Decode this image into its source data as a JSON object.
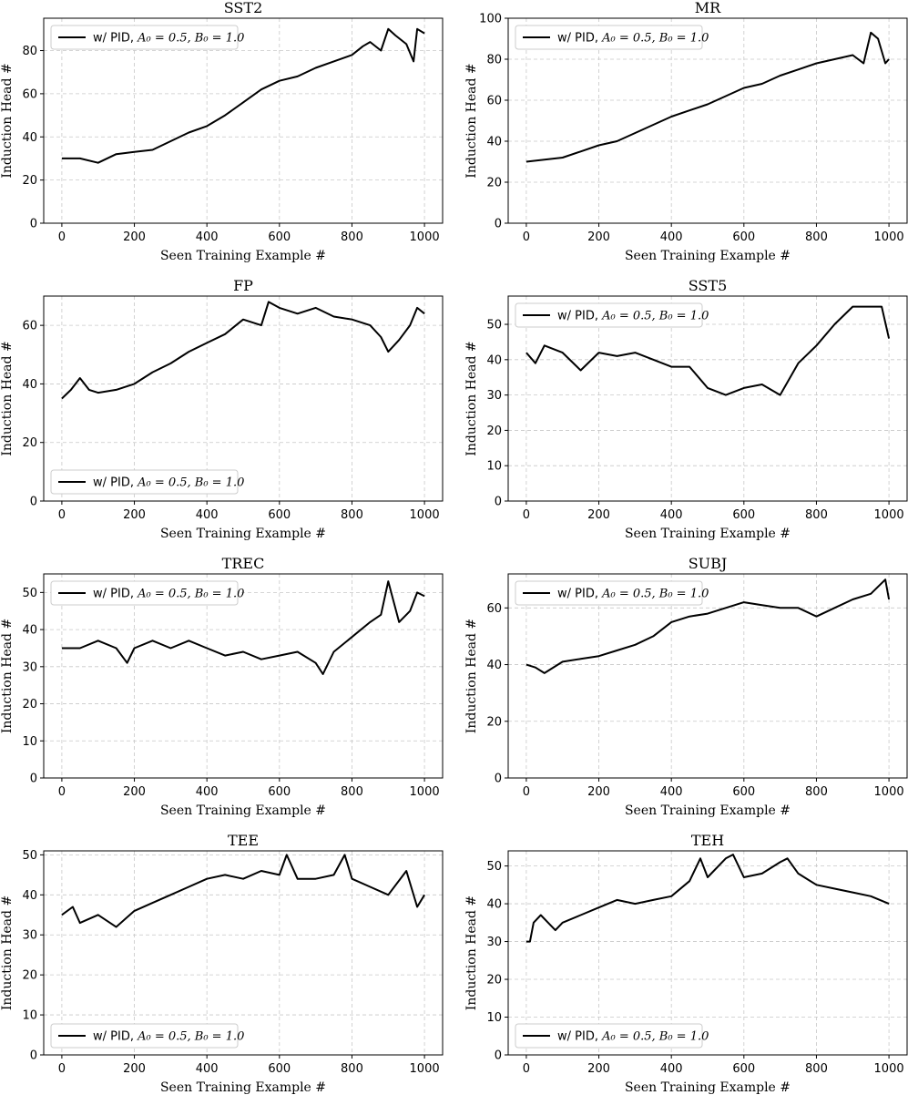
{
  "figure": {
    "xlabel": "Seen Training Example #",
    "ylabel": "Induction Head #",
    "legend_label": "w/ PID, A₀ = 0.5, B₀ = 1.0",
    "legend_prefix": "w/ PID,",
    "legend_math": "A₀ = 0.5, B₀ = 1.0",
    "line_color": "#000000",
    "grid_color": "#c8c8c8"
  },
  "chart_data": [
    {
      "type": "line",
      "title": "SST2",
      "legend_loc": "upper-left",
      "xlim": [
        -50,
        1050
      ],
      "ylim": [
        0,
        95
      ],
      "xticks": [
        0,
        200,
        400,
        600,
        800,
        1000
      ],
      "yticks": [
        0,
        20,
        40,
        60,
        80
      ],
      "series": [
        {
          "name": "w/ PID, A0=0.5, B0=1.0",
          "x": [
            0,
            50,
            100,
            150,
            200,
            250,
            300,
            350,
            400,
            450,
            500,
            550,
            600,
            650,
            700,
            750,
            800,
            830,
            850,
            880,
            900,
            920,
            950,
            970,
            980,
            1000
          ],
          "y": [
            30,
            30,
            28,
            32,
            33,
            34,
            38,
            42,
            45,
            50,
            56,
            62,
            66,
            68,
            72,
            75,
            78,
            82,
            84,
            80,
            90,
            87,
            83,
            75,
            90,
            88
          ]
        }
      ]
    },
    {
      "type": "line",
      "title": "MR",
      "legend_loc": "upper-left",
      "xlim": [
        -50,
        1050
      ],
      "ylim": [
        0,
        100
      ],
      "xticks": [
        0,
        200,
        400,
        600,
        800,
        1000
      ],
      "yticks": [
        0,
        20,
        40,
        60,
        80,
        100
      ],
      "series": [
        {
          "name": "w/ PID, A0=0.5, B0=1.0",
          "x": [
            0,
            50,
            100,
            150,
            200,
            250,
            300,
            350,
            400,
            450,
            500,
            550,
            600,
            650,
            700,
            750,
            800,
            850,
            900,
            930,
            950,
            970,
            990,
            1000
          ],
          "y": [
            30,
            31,
            32,
            35,
            38,
            40,
            44,
            48,
            52,
            55,
            58,
            62,
            66,
            68,
            72,
            75,
            78,
            80,
            82,
            78,
            93,
            90,
            78,
            80
          ]
        }
      ]
    },
    {
      "type": "line",
      "title": "FP",
      "legend_loc": "lower-left",
      "xlim": [
        -50,
        1050
      ],
      "ylim": [
        0,
        70
      ],
      "xticks": [
        0,
        200,
        400,
        600,
        800,
        1000
      ],
      "yticks": [
        0,
        20,
        40,
        60
      ],
      "series": [
        {
          "name": "w/ PID, A0=0.5, B0=1.0",
          "x": [
            0,
            25,
            50,
            75,
            100,
            150,
            200,
            250,
            300,
            350,
            400,
            450,
            500,
            550,
            570,
            600,
            650,
            700,
            750,
            800,
            850,
            880,
            900,
            930,
            960,
            980,
            1000
          ],
          "y": [
            35,
            38,
            42,
            38,
            37,
            38,
            40,
            44,
            47,
            51,
            54,
            57,
            62,
            60,
            68,
            66,
            64,
            66,
            63,
            62,
            60,
            56,
            51,
            55,
            60,
            66,
            64
          ]
        }
      ]
    },
    {
      "type": "line",
      "title": "SST5",
      "legend_loc": "upper-left",
      "xlim": [
        -50,
        1050
      ],
      "ylim": [
        0,
        58
      ],
      "xticks": [
        0,
        200,
        400,
        600,
        800,
        1000
      ],
      "yticks": [
        0,
        10,
        20,
        30,
        40,
        50
      ],
      "series": [
        {
          "name": "w/ PID, A0=0.5, B0=1.0",
          "x": [
            0,
            25,
            50,
            100,
            150,
            200,
            250,
            300,
            350,
            400,
            450,
            500,
            550,
            600,
            650,
            700,
            750,
            800,
            850,
            900,
            950,
            980,
            1000
          ],
          "y": [
            42,
            39,
            44,
            42,
            37,
            42,
            41,
            42,
            40,
            38,
            38,
            32,
            30,
            32,
            33,
            30,
            39,
            44,
            50,
            55,
            55,
            55,
            46
          ]
        }
      ]
    },
    {
      "type": "line",
      "title": "TREC",
      "legend_loc": "upper-left",
      "xlim": [
        -50,
        1050
      ],
      "ylim": [
        0,
        55
      ],
      "xticks": [
        0,
        200,
        400,
        600,
        800,
        1000
      ],
      "yticks": [
        0,
        10,
        20,
        30,
        40,
        50
      ],
      "series": [
        {
          "name": "w/ PID, A0=0.5, B0=1.0",
          "x": [
            0,
            50,
            100,
            150,
            180,
            200,
            250,
            300,
            350,
            400,
            450,
            500,
            550,
            600,
            650,
            700,
            720,
            750,
            800,
            850,
            880,
            900,
            930,
            960,
            980,
            1000
          ],
          "y": [
            35,
            35,
            37,
            35,
            31,
            35,
            37,
            35,
            37,
            35,
            33,
            34,
            32,
            33,
            34,
            31,
            28,
            34,
            38,
            42,
            44,
            53,
            42,
            45,
            50,
            49
          ]
        }
      ]
    },
    {
      "type": "line",
      "title": "SUBJ",
      "legend_loc": "upper-left",
      "xlim": [
        -50,
        1050
      ],
      "ylim": [
        0,
        72
      ],
      "xticks": [
        0,
        200,
        400,
        600,
        800,
        1000
      ],
      "yticks": [
        0,
        20,
        40,
        60
      ],
      "series": [
        {
          "name": "w/ PID, A0=0.5, B0=1.0",
          "x": [
            0,
            25,
            50,
            100,
            150,
            200,
            250,
            300,
            350,
            400,
            450,
            500,
            550,
            600,
            650,
            700,
            750,
            800,
            850,
            900,
            950,
            990,
            1000
          ],
          "y": [
            40,
            39,
            37,
            41,
            42,
            43,
            45,
            47,
            50,
            55,
            57,
            58,
            60,
            62,
            61,
            60,
            60,
            57,
            60,
            63,
            65,
            70,
            63
          ]
        }
      ]
    },
    {
      "type": "line",
      "title": "TEE",
      "legend_loc": "lower-left",
      "xlim": [
        -50,
        1050
      ],
      "ylim": [
        0,
        51
      ],
      "xticks": [
        0,
        200,
        400,
        600,
        800,
        1000
      ],
      "yticks": [
        0,
        10,
        20,
        30,
        40,
        50
      ],
      "series": [
        {
          "name": "w/ PID, A0=0.5, B0=1.0",
          "x": [
            0,
            30,
            50,
            100,
            150,
            200,
            250,
            300,
            350,
            400,
            450,
            500,
            550,
            600,
            620,
            650,
            700,
            750,
            780,
            800,
            850,
            900,
            950,
            980,
            1000
          ],
          "y": [
            35,
            37,
            33,
            35,
            32,
            36,
            38,
            40,
            42,
            44,
            45,
            44,
            46,
            45,
            50,
            44,
            44,
            45,
            50,
            44,
            42,
            40,
            46,
            37,
            40
          ]
        }
      ]
    },
    {
      "type": "line",
      "title": "TEH",
      "legend_loc": "lower-left",
      "xlim": [
        -50,
        1050
      ],
      "ylim": [
        0,
        54
      ],
      "xticks": [
        0,
        200,
        400,
        600,
        800,
        1000
      ],
      "yticks": [
        0,
        10,
        20,
        30,
        40,
        50
      ],
      "series": [
        {
          "name": "w/ PID, A0=0.5, B0=1.0",
          "x": [
            0,
            10,
            20,
            40,
            60,
            80,
            100,
            150,
            200,
            250,
            300,
            350,
            400,
            450,
            480,
            500,
            550,
            570,
            600,
            650,
            700,
            720,
            750,
            800,
            850,
            900,
            950,
            1000
          ],
          "y": [
            30,
            30,
            35,
            37,
            35,
            33,
            35,
            37,
            39,
            41,
            40,
            41,
            42,
            46,
            52,
            47,
            52,
            53,
            47,
            48,
            51,
            52,
            48,
            45,
            44,
            43,
            42,
            40
          ]
        }
      ]
    }
  ]
}
